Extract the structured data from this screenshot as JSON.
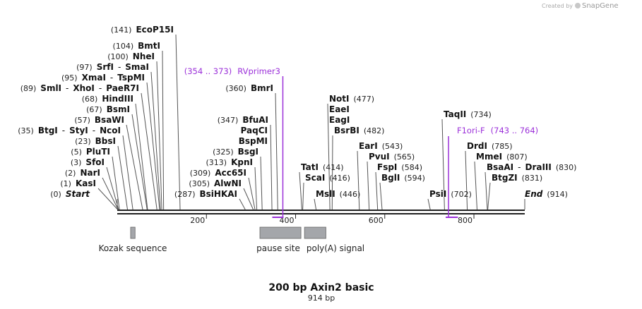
{
  "map": {
    "title": "200 bp Axin2 basic",
    "length_label": "914 bp",
    "total_bp": 914,
    "credit_prefix": "Created by",
    "credit_brand": "SnapGene",
    "colors": {
      "primer": "#9b30d9",
      "feature": "#a4a6aa",
      "backbone": "#222222"
    }
  },
  "ruler": [
    {
      "bp": 200,
      "label": "200"
    },
    {
      "bp": 400,
      "label": "400"
    },
    {
      "bp": 600,
      "label": "600"
    },
    {
      "bp": 800,
      "label": "800"
    }
  ],
  "sites": [
    {
      "bp": 141,
      "parts": [
        [
          "pos",
          "(141)"
        ],
        [
          "name",
          "EcoP15I"
        ]
      ]
    },
    {
      "bp": 104,
      "parts": [
        [
          "pos",
          "(104)"
        ],
        [
          "name",
          "BmtI"
        ]
      ]
    },
    {
      "bp": 100,
      "parts": [
        [
          "pos",
          "(100)"
        ],
        [
          "name",
          "NheI"
        ]
      ]
    },
    {
      "bp": 97,
      "parts": [
        [
          "pos",
          "(97)"
        ],
        [
          "name",
          "SrfI"
        ],
        [
          "sep",
          "-"
        ],
        [
          "name",
          "SmaI"
        ]
      ]
    },
    {
      "bp": 95,
      "parts": [
        [
          "pos",
          "(95)"
        ],
        [
          "name",
          "XmaI"
        ],
        [
          "sep",
          "-"
        ],
        [
          "name",
          "TspMI"
        ]
      ]
    },
    {
      "bp": 89,
      "parts": [
        [
          "pos",
          "(89)"
        ],
        [
          "name",
          "SmlI"
        ],
        [
          "sep",
          "-"
        ],
        [
          "name",
          "XhoI"
        ],
        [
          "sep",
          "-"
        ],
        [
          "name",
          "PaeR7I"
        ]
      ]
    },
    {
      "bp": 68,
      "parts": [
        [
          "pos",
          "(68)"
        ],
        [
          "name",
          "HindIII"
        ]
      ]
    },
    {
      "bp": 67,
      "parts": [
        [
          "pos",
          "(67)"
        ],
        [
          "name",
          "BsmI"
        ]
      ]
    },
    {
      "bp": 57,
      "parts": [
        [
          "pos",
          "(57)"
        ],
        [
          "name",
          "BsaWI"
        ]
      ]
    },
    {
      "bp": 35,
      "parts": [
        [
          "pos",
          "(35)"
        ],
        [
          "name",
          "BtgI"
        ],
        [
          "sep",
          "-"
        ],
        [
          "name",
          "StyI"
        ],
        [
          "sep",
          "-"
        ],
        [
          "name",
          "NcoI"
        ]
      ]
    },
    {
      "bp": 23,
      "parts": [
        [
          "pos",
          "(23)"
        ],
        [
          "name",
          "BbsI"
        ]
      ]
    },
    {
      "bp": 5,
      "parts": [
        [
          "pos",
          "(5)"
        ],
        [
          "name",
          "PluTI"
        ]
      ]
    },
    {
      "bp": 3,
      "parts": [
        [
          "pos",
          "(3)"
        ],
        [
          "name",
          "SfoI"
        ]
      ]
    },
    {
      "bp": 2,
      "parts": [
        [
          "pos",
          "(2)"
        ],
        [
          "name",
          "NarI"
        ]
      ]
    },
    {
      "bp": 1,
      "parts": [
        [
          "pos",
          "(1)"
        ],
        [
          "name",
          "KasI"
        ]
      ]
    },
    {
      "bp": 0,
      "parts": [
        [
          "pos",
          "(0)"
        ],
        [
          "name",
          "Start"
        ]
      ]
    },
    {
      "bp": 360,
      "parts": [
        [
          "pos",
          "(360)"
        ],
        [
          "name",
          "BmrI"
        ]
      ]
    },
    {
      "bp": 347,
      "parts": [
        [
          "pos",
          "(347)"
        ],
        [
          "name",
          "BfuAI"
        ]
      ]
    },
    {
      "bp": 347,
      "parts": [
        [
          "name",
          "PaqCI"
        ]
      ]
    },
    {
      "bp": 347,
      "parts": [
        [
          "name",
          "BspMI"
        ]
      ]
    },
    {
      "bp": 325,
      "parts": [
        [
          "pos",
          "(325)"
        ],
        [
          "name",
          "BsgI"
        ]
      ]
    },
    {
      "bp": 313,
      "parts": [
        [
          "pos",
          "(313)"
        ],
        [
          "name",
          "KpnI"
        ]
      ]
    },
    {
      "bp": 309,
      "parts": [
        [
          "pos",
          "(309)"
        ],
        [
          "name",
          "Acc65I"
        ]
      ]
    },
    {
      "bp": 305,
      "parts": [
        [
          "pos",
          "(305)"
        ],
        [
          "name",
          "AlwNI"
        ]
      ]
    },
    {
      "bp": 287,
      "parts": [
        [
          "pos",
          "(287)"
        ],
        [
          "name",
          "BsiHKAI"
        ]
      ]
    },
    {
      "bp": 477,
      "parts": [
        [
          "name",
          "NotI"
        ],
        [
          "pos",
          "(477)"
        ]
      ]
    },
    {
      "bp": 477,
      "parts": [
        [
          "name",
          "EaeI"
        ]
      ]
    },
    {
      "bp": 477,
      "parts": [
        [
          "name",
          "EagI"
        ]
      ]
    },
    {
      "bp": 482,
      "parts": [
        [
          "name",
          "BsrBI"
        ],
        [
          "pos",
          "(482)"
        ]
      ]
    },
    {
      "bp": 414,
      "parts": [
        [
          "name",
          "TatI"
        ],
        [
          "pos",
          "(414)"
        ]
      ]
    },
    {
      "bp": 416,
      "parts": [
        [
          "name",
          "ScaI"
        ],
        [
          "pos",
          "(416)"
        ]
      ]
    },
    {
      "bp": 446,
      "parts": [
        [
          "name",
          "MslI"
        ],
        [
          "pos",
          "(446)"
        ]
      ]
    },
    {
      "bp": 543,
      "parts": [
        [
          "name",
          "EarI"
        ],
        [
          "pos",
          "(543)"
        ]
      ]
    },
    {
      "bp": 565,
      "parts": [
        [
          "name",
          "PvuI"
        ],
        [
          "pos",
          "(565)"
        ]
      ]
    },
    {
      "bp": 584,
      "parts": [
        [
          "name",
          "FspI"
        ],
        [
          "pos",
          "(584)"
        ]
      ]
    },
    {
      "bp": 594,
      "parts": [
        [
          "name",
          "BglI"
        ],
        [
          "pos",
          "(594)"
        ]
      ]
    },
    {
      "bp": 734,
      "parts": [
        [
          "name",
          "TaqII"
        ],
        [
          "pos",
          "(734)"
        ]
      ]
    },
    {
      "bp": 702,
      "parts": [
        [
          "name",
          "PsiI"
        ],
        [
          "pos",
          "(702)"
        ]
      ]
    },
    {
      "bp": 785,
      "parts": [
        [
          "name",
          "DrdI"
        ],
        [
          "pos",
          "(785)"
        ]
      ]
    },
    {
      "bp": 807,
      "parts": [
        [
          "name",
          "MmeI"
        ],
        [
          "pos",
          "(807)"
        ]
      ]
    },
    {
      "bp": 830,
      "parts": [
        [
          "name",
          "BsaAI"
        ],
        [
          "sep",
          "-"
        ],
        [
          "name",
          "DraIII"
        ],
        [
          "pos",
          "(830)"
        ]
      ]
    },
    {
      "bp": 831,
      "parts": [
        [
          "name",
          "BtgZI"
        ],
        [
          "pos",
          "(831)"
        ]
      ]
    },
    {
      "bp": 914,
      "parts": [
        [
          "name",
          "End"
        ],
        [
          "pos",
          "(914)"
        ]
      ]
    }
  ],
  "primers": [
    {
      "name": "RVprimer3",
      "range": "(354 .. 373)",
      "start": 354,
      "end": 373,
      "strand": "reverse"
    },
    {
      "name": "F1ori-F",
      "range": "(743 .. 764)",
      "start": 743,
      "end": 764,
      "strand": "forward"
    }
  ],
  "features": [
    {
      "name": "Kozak sequence",
      "start": 30,
      "end": 40
    },
    {
      "name": "pause site",
      "start": 320,
      "end": 412
    },
    {
      "name": "poly(A) signal",
      "start": 420,
      "end": 468
    }
  ]
}
